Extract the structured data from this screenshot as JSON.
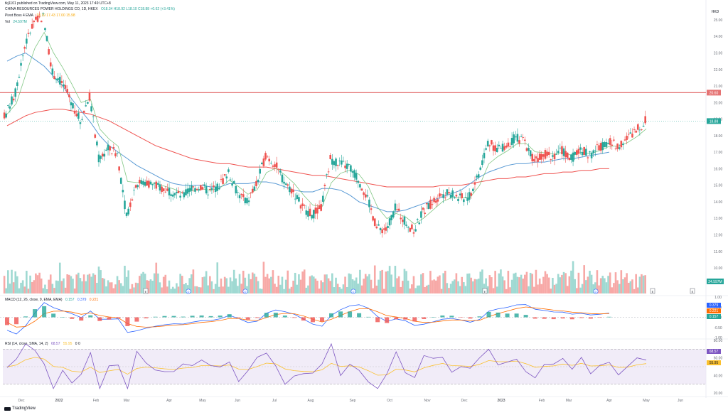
{
  "header": {
    "published": "tkj1101 published on TradingView.com, May 11, 2023 17:49 UTC+8"
  },
  "legend": {
    "symbol": "CHINA RESOURCES POWER HOLDINGS CO, 1D, HKEX",
    "ohlc": "O18.34  H18.92  L18.10  C18.88  +0.62 (+3.41%)",
    "pivot_label": "Pivot Boss 4 EMA",
    "pivot_values": "18.19  17.43  17.00  15.98",
    "vol_label": "Vol",
    "vol_value": "24.597M",
    "macd_label": "MACD (12, 26, close, 9, EMA, EMA)",
    "macd_values": [
      "0.157",
      "0.379",
      "0.221"
    ],
    "rsi_label": "RSI (14, close, SMA, 14, 2)",
    "rsi_values": [
      "68.57",
      "55.95"
    ],
    "rsi_extra": "0  0"
  },
  "currency": "HKD",
  "logo": "TradingView",
  "colors": {
    "up": "#26a69a",
    "down": "#ef5350",
    "ema_fast": "#f7a600",
    "ema_mid": "#81c784",
    "ema_slow": "#5b9bd5",
    "ema_200": "#ef5350",
    "hline": "#e57373",
    "macd_line": "#2962ff",
    "signal_line": "#ff6d00",
    "rsi_line": "#7e57c2",
    "rsi_ma": "#fbc02d"
  },
  "price_labels": {
    "hline": "20.60",
    "last": "18.88"
  },
  "macd_labels": [
    "0.379",
    "0.221",
    "0.157"
  ],
  "rsi_labels": [
    "68.57",
    "55.95"
  ],
  "vol_label_box": "24.597M",
  "event_markers": [
    "E",
    "D",
    "D",
    "E",
    "D",
    "E",
    "E",
    "D"
  ],
  "chart_data": {
    "type": "candlestick",
    "title": "CHINA RESOURCES POWER HOLDINGS CO, 1D, HKEX",
    "y_unit": "HKD",
    "y_axis_ticks": [
      "25.00",
      "24.00",
      "23.00",
      "22.00",
      "21.00",
      "20.00",
      "19.00",
      "18.00",
      "17.00",
      "16.00",
      "15.00",
      "14.00",
      "13.00",
      "12.00",
      "11.00",
      "10.00"
    ],
    "x_axis_ticks": [
      "Dec",
      "2022",
      "Feb",
      "Mar",
      "Apr",
      "May",
      "Jun",
      "Jul",
      "Aug",
      "Sep",
      "Oct",
      "Nov",
      "Dec",
      "2023",
      "Feb",
      "Mar",
      "Apr",
      "May",
      "Jun"
    ],
    "horizontal_line": 20.6,
    "last_close": 18.88,
    "weekly_close": [
      {
        "week": "Dec",
        "c": 19.3
      },
      {
        "week": "",
        "c": 20.6
      },
      {
        "week": "",
        "c": 23.4
      },
      {
        "week": "",
        "c": 24.9
      },
      {
        "week": "2022",
        "c": 25.2
      },
      {
        "week": "",
        "c": 21.8
      },
      {
        "week": "",
        "c": 21.2
      },
      {
        "week": "",
        "c": 20.1
      },
      {
        "week": "Feb",
        "c": 18.9
      },
      {
        "week": "",
        "c": 20.4
      },
      {
        "week": "",
        "c": 16.6
      },
      {
        "week": "",
        "c": 17.2
      },
      {
        "week": "Mar",
        "c": 16.9
      },
      {
        "week": "",
        "c": 13.1
      },
      {
        "week": "",
        "c": 15.1
      },
      {
        "week": "",
        "c": 15.2
      },
      {
        "week": "Apr",
        "c": 15.0
      },
      {
        "week": "",
        "c": 14.8
      },
      {
        "week": "",
        "c": 14.6
      },
      {
        "week": "",
        "c": 14.3
      },
      {
        "week": "May",
        "c": 14.8
      },
      {
        "week": "",
        "c": 14.9
      },
      {
        "week": "",
        "c": 14.6
      },
      {
        "week": "",
        "c": 15.0
      },
      {
        "week": "Jun",
        "c": 15.8
      },
      {
        "week": "",
        "c": 14.5
      },
      {
        "week": "",
        "c": 14.0
      },
      {
        "week": "",
        "c": 15.0
      },
      {
        "week": "Jul",
        "c": 16.8
      },
      {
        "week": "",
        "c": 16.3
      },
      {
        "week": "",
        "c": 15.2
      },
      {
        "week": "",
        "c": 14.6
      },
      {
        "week": "Aug",
        "c": 13.7
      },
      {
        "week": "",
        "c": 13.2
      },
      {
        "week": "",
        "c": 13.6
      },
      {
        "week": "",
        "c": 16.6
      },
      {
        "week": "Sep",
        "c": 16.3
      },
      {
        "week": "",
        "c": 16.1
      },
      {
        "week": "",
        "c": 15.4
      },
      {
        "week": "",
        "c": 14.2
      },
      {
        "week": "Oct",
        "c": 12.4
      },
      {
        "week": "",
        "c": 12.3
      },
      {
        "week": "",
        "c": 13.6
      },
      {
        "week": "",
        "c": 12.9
      },
      {
        "week": "Nov",
        "c": 12.2
      },
      {
        "week": "",
        "c": 13.4
      },
      {
        "week": "",
        "c": 14.0
      },
      {
        "week": "",
        "c": 14.5
      },
      {
        "week": "Dec",
        "c": 14.5
      },
      {
        "week": "",
        "c": 14.2
      },
      {
        "week": "",
        "c": 14.3
      },
      {
        "week": "",
        "c": 15.7
      },
      {
        "week": "2023",
        "c": 17.6
      },
      {
        "week": "",
        "c": 17.2
      },
      {
        "week": "",
        "c": 17.4
      },
      {
        "week": "",
        "c": 17.9
      },
      {
        "week": "Feb",
        "c": 17.6
      },
      {
        "week": "",
        "c": 16.5
      },
      {
        "week": "",
        "c": 16.9
      },
      {
        "week": "",
        "c": 16.8
      },
      {
        "week": "Mar",
        "c": 17.1
      },
      {
        "week": "",
        "c": 16.6
      },
      {
        "week": "",
        "c": 17.2
      },
      {
        "week": "",
        "c": 16.8
      },
      {
        "week": "Apr",
        "c": 17.3
      },
      {
        "week": "",
        "c": 17.6
      },
      {
        "week": "",
        "c": 17.4
      },
      {
        "week": "",
        "c": 17.8
      },
      {
        "week": "May",
        "c": 18.3
      },
      {
        "week": "",
        "c": 18.88
      }
    ],
    "ema_slow_approx": [
      22.5,
      22.8,
      23.0,
      22.6,
      22.2,
      21.6,
      21.0,
      20.2,
      19.5,
      18.8,
      18.0,
      17.4,
      17.0,
      16.6,
      16.2,
      15.9,
      15.6,
      15.3,
      15.1,
      15.0,
      15.0,
      15.0,
      14.9,
      14.9,
      15.1,
      15.1,
      15.1,
      15.2,
      15.2,
      15.1,
      14.9,
      14.7,
      14.6,
      14.6,
      14.8,
      14.8,
      14.7,
      14.4,
      14.0,
      13.8,
      13.6,
      13.4,
      13.4,
      13.5,
      13.7,
      13.9,
      14.1,
      14.3,
      14.5,
      14.7,
      15.1,
      15.5,
      15.8,
      16.0,
      16.2,
      16.3,
      16.3,
      16.4,
      16.4,
      16.5,
      16.6,
      16.6,
      16.7,
      16.8,
      16.9,
      17.0
    ],
    "ema_200_approx": [
      18.6,
      18.9,
      19.2,
      19.4,
      19.5,
      19.6,
      19.6,
      19.5,
      19.4,
      19.3,
      19.1,
      18.9,
      18.6,
      18.3,
      18.0,
      17.7,
      17.4,
      17.2,
      17.0,
      16.8,
      16.6,
      16.5,
      16.4,
      16.3,
      16.3,
      16.2,
      16.1,
      16.1,
      16.1,
      16.0,
      15.9,
      15.8,
      15.7,
      15.6,
      15.6,
      15.5,
      15.4,
      15.3,
      15.2,
      15.1,
      15.0,
      14.9,
      14.9,
      14.9,
      14.9,
      14.9,
      14.9,
      15.0,
      15.0,
      15.0,
      15.1,
      15.2,
      15.3,
      15.4,
      15.4,
      15.5,
      15.5,
      15.6,
      15.7,
      15.7,
      15.8,
      15.8,
      15.9,
      15.9,
      16.0,
      16.0
    ],
    "macd_range": [
      -1.0,
      1.0
    ],
    "rsi_range": [
      20,
      80
    ],
    "rsi_bands": [
      70,
      30
    ]
  }
}
